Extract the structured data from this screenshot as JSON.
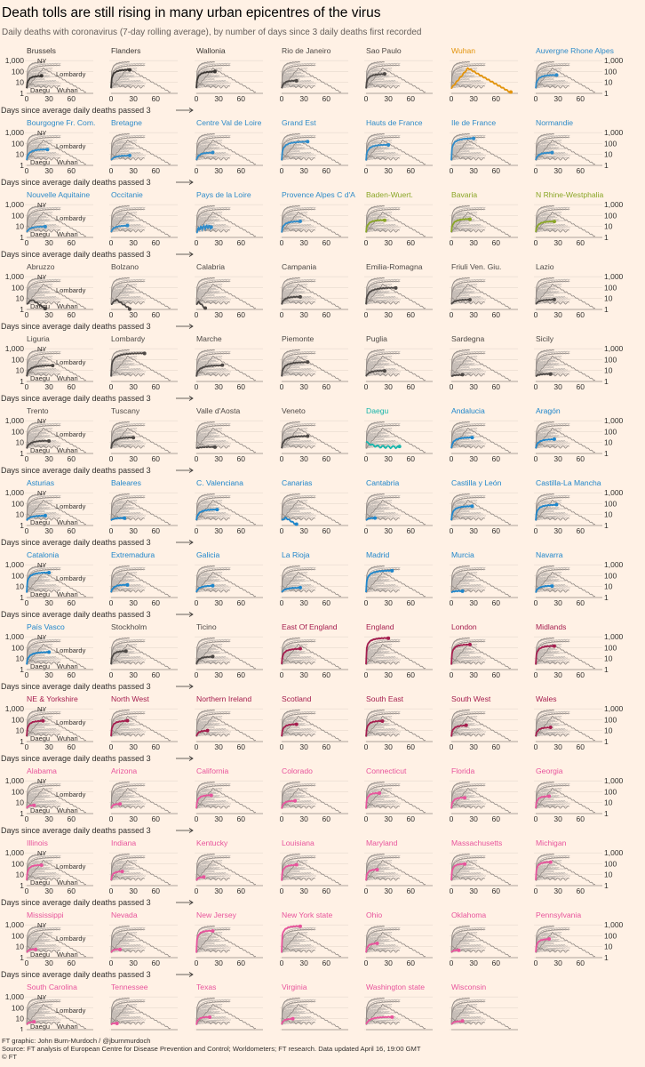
{
  "title": "Death tolls are still rising in many urban epicentres of the virus",
  "subtitle": "Daily deaths with coronavirus (7-day rolling average), by number of days since 3 daily deaths first recorded",
  "footer": {
    "credit": "FT graphic: John Burn-Murdoch / @jburnmurdoch",
    "source": "Source: FT analysis of European Centre for Disease Prevention and Control; Worldometers; FT research. Data updated April 16, 19:00 GMT",
    "copyright": "© FT"
  },
  "colors": {
    "background": "#fff1e5",
    "Belgium": "#3a3633",
    "China": "#e3940c",
    "France": "#2e8bc9",
    "Germany": "#8aa627",
    "Italy": "#4d4845",
    "South Korea": "#17b5ab",
    "Spain": "#1e86cb",
    "Other": "#4d4845",
    "UK": "#a51d4e",
    "US": "#e8549c",
    "background_lines": "#c4bcb6"
  },
  "chart_data": {
    "type": "line",
    "scale": "log",
    "yticks": [
      "1",
      "10",
      "100",
      "1,000"
    ],
    "ylim": [
      1,
      1500
    ],
    "xticks": [
      "0",
      "30",
      "60"
    ],
    "xlim": [
      0,
      80
    ],
    "xlabel": "Days since average daily deaths passed 3",
    "reference_labels": [
      "NY",
      "Lombardy",
      "Daegu",
      "Wuhan"
    ],
    "panels": [
      {
        "name": "Brussels",
        "group": "Belgium",
        "peak": 40,
        "days": 20
      },
      {
        "name": "Flanders",
        "group": "Belgium",
        "peak": 150,
        "days": 25
      },
      {
        "name": "Wallonia",
        "group": "Belgium",
        "peak": 100,
        "days": 25
      },
      {
        "name": "Rio de Janeiro",
        "group": "Other",
        "peak": 15,
        "days": 20
      },
      {
        "name": "Sao Paulo",
        "group": "Other",
        "peak": 60,
        "days": 25
      },
      {
        "name": "Wuhan",
        "group": "China",
        "peak": 200,
        "days": 80,
        "decline": true
      },
      {
        "name": "Auvergne Rhone Alpes",
        "group": "France",
        "peak": 50,
        "days": 28
      },
      {
        "name": "Bourgogne Fr. Com.",
        "group": "France",
        "peak": 30,
        "days": 28
      },
      {
        "name": "Bretagne",
        "group": "France",
        "peak": 8,
        "days": 25
      },
      {
        "name": "Centre Val de Loire",
        "group": "France",
        "peak": 15,
        "days": 22
      },
      {
        "name": "Grand Est",
        "group": "France",
        "peak": 150,
        "days": 35
      },
      {
        "name": "Hauts de France",
        "group": "France",
        "peak": 80,
        "days": 30
      },
      {
        "name": "Ile de France",
        "group": "France",
        "peak": 300,
        "days": 30
      },
      {
        "name": "Normandie",
        "group": "France",
        "peak": 15,
        "days": 22
      },
      {
        "name": "Nouvelle Aquitaine",
        "group": "France",
        "peak": 10,
        "days": 25
      },
      {
        "name": "Occitanie",
        "group": "France",
        "peak": 12,
        "days": 22
      },
      {
        "name": "Pays de la Loire",
        "group": "France",
        "peak": 10,
        "days": 20,
        "noisy": true
      },
      {
        "name": "Provence Alpes C d'A",
        "group": "France",
        "peak": 30,
        "days": 25
      },
      {
        "name": "Baden-Wuert.",
        "group": "Germany",
        "peak": 40,
        "days": 25
      },
      {
        "name": "Bavaria",
        "group": "Germany",
        "peak": 50,
        "days": 25
      },
      {
        "name": "N Rhine-Westphalia",
        "group": "Germany",
        "peak": 30,
        "days": 25
      },
      {
        "name": "Abruzzo",
        "group": "Italy",
        "peak": 8,
        "days": 25,
        "decline": true
      },
      {
        "name": "Bolzano",
        "group": "Italy",
        "peak": 8,
        "days": 25,
        "decline": true
      },
      {
        "name": "Calabria",
        "group": "Italy",
        "peak": 5,
        "days": 12,
        "decline": true
      },
      {
        "name": "Campania",
        "group": "Italy",
        "peak": 15,
        "days": 25
      },
      {
        "name": "Emilia-Romagna",
        "group": "Italy",
        "peak": 100,
        "days": 40
      },
      {
        "name": "Friuli Ven. Giu.",
        "group": "Italy",
        "peak": 8,
        "days": 25
      },
      {
        "name": "Lazio",
        "group": "Italy",
        "peak": 8,
        "days": 25
      },
      {
        "name": "Liguria",
        "group": "Italy",
        "peak": 30,
        "days": 35
      },
      {
        "name": "Lombardy",
        "group": "Italy",
        "peak": 400,
        "days": 45
      },
      {
        "name": "Marche",
        "group": "Italy",
        "peak": 30,
        "days": 35
      },
      {
        "name": "Piemonte",
        "group": "Italy",
        "peak": 60,
        "days": 35
      },
      {
        "name": "Puglia",
        "group": "Italy",
        "peak": 10,
        "days": 25
      },
      {
        "name": "Sardegna",
        "group": "Italy",
        "peak": 4,
        "days": 15
      },
      {
        "name": "Sicily",
        "group": "Italy",
        "peak": 5,
        "days": 20
      },
      {
        "name": "Trento",
        "group": "Italy",
        "peak": 15,
        "days": 30
      },
      {
        "name": "Tuscany",
        "group": "Italy",
        "peak": 30,
        "days": 30
      },
      {
        "name": "Valle d'Aosta",
        "group": "Italy",
        "peak": 4,
        "days": 25
      },
      {
        "name": "Veneto",
        "group": "Italy",
        "peak": 40,
        "days": 35
      },
      {
        "name": "Daegu",
        "group": "South Korea",
        "peak": 4,
        "days": 45,
        "flat": true
      },
      {
        "name": "Andalucia",
        "group": "Spain",
        "peak": 30,
        "days": 28
      },
      {
        "name": "Aragón",
        "group": "Spain",
        "peak": 20,
        "days": 25
      },
      {
        "name": "Asturias",
        "group": "Spain",
        "peak": 8,
        "days": 25
      },
      {
        "name": "Baleares",
        "group": "Spain",
        "peak": 5,
        "days": 18
      },
      {
        "name": "C. Valenciana",
        "group": "Spain",
        "peak": 30,
        "days": 28
      },
      {
        "name": "Canarias",
        "group": "Spain",
        "peak": 5,
        "days": 20,
        "decline": true
      },
      {
        "name": "Cantabria",
        "group": "Spain",
        "peak": 5,
        "days": 12
      },
      {
        "name": "Castilla y León",
        "group": "Spain",
        "peak": 60,
        "days": 28
      },
      {
        "name": "Castilla-La Mancha",
        "group": "Spain",
        "peak": 80,
        "days": 28
      },
      {
        "name": "Catalonia",
        "group": "Spain",
        "peak": 200,
        "days": 30
      },
      {
        "name": "Extremadura",
        "group": "Spain",
        "peak": 15,
        "days": 22
      },
      {
        "name": "Galicia",
        "group": "Spain",
        "peak": 12,
        "days": 22
      },
      {
        "name": "La Rioja",
        "group": "Spain",
        "peak": 8,
        "days": 25
      },
      {
        "name": "Madrid",
        "group": "Spain",
        "peak": 300,
        "days": 35
      },
      {
        "name": "Murcia",
        "group": "Spain",
        "peak": 4,
        "days": 15
      },
      {
        "name": "Navarra",
        "group": "Spain",
        "peak": 12,
        "days": 22
      },
      {
        "name": "País Vasco",
        "group": "Spain",
        "peak": 40,
        "days": 30
      },
      {
        "name": "Stockholm",
        "group": "Other",
        "peak": 50,
        "days": 20
      },
      {
        "name": "Ticino",
        "group": "Other",
        "peak": 15,
        "days": 22
      },
      {
        "name": "East Of England",
        "group": "UK",
        "peak": 80,
        "days": 25
      },
      {
        "name": "England",
        "group": "UK",
        "peak": 800,
        "days": 30
      },
      {
        "name": "London",
        "group": "UK",
        "peak": 200,
        "days": 25
      },
      {
        "name": "Midlands",
        "group": "UK",
        "peak": 150,
        "days": 25
      },
      {
        "name": "NE & Yorkshire",
        "group": "UK",
        "peak": 80,
        "days": 22
      },
      {
        "name": "North West",
        "group": "UK",
        "peak": 80,
        "days": 22
      },
      {
        "name": "Northern Ireland",
        "group": "UK",
        "peak": 10,
        "days": 15
      },
      {
        "name": "Scotland",
        "group": "UK",
        "peak": 40,
        "days": 20
      },
      {
        "name": "South East",
        "group": "UK",
        "peak": 80,
        "days": 22
      },
      {
        "name": "South West",
        "group": "UK",
        "peak": 30,
        "days": 20
      },
      {
        "name": "Wales",
        "group": "UK",
        "peak": 20,
        "days": 20
      },
      {
        "name": "Alabama",
        "group": "US",
        "peak": 6,
        "days": 10
      },
      {
        "name": "Arizona",
        "group": "US",
        "peak": 8,
        "days": 12
      },
      {
        "name": "California",
        "group": "US",
        "peak": 50,
        "days": 20
      },
      {
        "name": "Colorado",
        "group": "US",
        "peak": 15,
        "days": 18
      },
      {
        "name": "Connecticut",
        "group": "US",
        "peak": 80,
        "days": 18
      },
      {
        "name": "Florida",
        "group": "US",
        "peak": 30,
        "days": 18
      },
      {
        "name": "Georgia",
        "group": "US",
        "peak": 40,
        "days": 18
      },
      {
        "name": "Illinois",
        "group": "US",
        "peak": 80,
        "days": 20
      },
      {
        "name": "Indiana",
        "group": "US",
        "peak": 20,
        "days": 15
      },
      {
        "name": "Kentucky",
        "group": "US",
        "peak": 6,
        "days": 10
      },
      {
        "name": "Louisiana",
        "group": "US",
        "peak": 80,
        "days": 20
      },
      {
        "name": "Maryland",
        "group": "US",
        "peak": 30,
        "days": 15
      },
      {
        "name": "Massachusetts",
        "group": "US",
        "peak": 100,
        "days": 18
      },
      {
        "name": "Michigan",
        "group": "US",
        "peak": 150,
        "days": 20
      },
      {
        "name": "Mississippi",
        "group": "US",
        "peak": 6,
        "days": 12
      },
      {
        "name": "Nevada",
        "group": "US",
        "peak": 6,
        "days": 12
      },
      {
        "name": "New Jersey",
        "group": "US",
        "peak": 300,
        "days": 22
      },
      {
        "name": "New York state",
        "group": "US",
        "peak": 800,
        "days": 25
      },
      {
        "name": "Ohio",
        "group": "US",
        "peak": 20,
        "days": 15
      },
      {
        "name": "Oklahoma",
        "group": "US",
        "peak": 5,
        "days": 10
      },
      {
        "name": "Pennsylvania",
        "group": "US",
        "peak": 50,
        "days": 18
      },
      {
        "name": "South Carolina",
        "group": "US",
        "peak": 5,
        "days": 10
      },
      {
        "name": "Tennessee",
        "group": "US",
        "peak": 4,
        "days": 8
      },
      {
        "name": "Texas",
        "group": "US",
        "peak": 15,
        "days": 18
      },
      {
        "name": "Virginia",
        "group": "US",
        "peak": 10,
        "days": 15
      },
      {
        "name": "Washington state",
        "group": "US",
        "peak": 15,
        "days": 35
      },
      {
        "name": "Wisconsin",
        "group": "US",
        "peak": 6,
        "days": 15
      }
    ]
  }
}
